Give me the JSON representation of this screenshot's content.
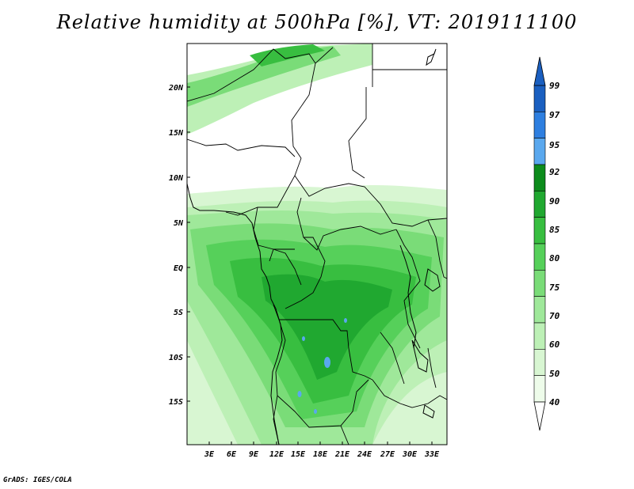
{
  "title": "Relative humidity at 500hPa [%], VT: 2019111100",
  "credit": "GrADS: IGES/COLA",
  "map": {
    "lat_labels": [
      "20N",
      "15N",
      "10N",
      "5N",
      "EQ",
      "5S",
      "10S",
      "15S"
    ],
    "lon_labels": [
      "3E",
      "6E",
      "9E",
      "12E",
      "15E",
      "18E",
      "21E",
      "24E",
      "27E",
      "30E",
      "33E"
    ]
  },
  "colorbar": {
    "levels": [
      "99",
      "97",
      "95",
      "92",
      "90",
      "85",
      "80",
      "75",
      "70",
      "60",
      "50",
      "40"
    ],
    "colors": [
      "#1a5fc0",
      "#2e7fe0",
      "#5aa8ee",
      "#0c8c1c",
      "#20a830",
      "#38be40",
      "#56d05a",
      "#7adc78",
      "#9fe89a",
      "#bdf0b6",
      "#d8f6d2",
      "#eefcea"
    ],
    "top_color": "#1a5fc0",
    "bottom_color": "#ffffff"
  }
}
